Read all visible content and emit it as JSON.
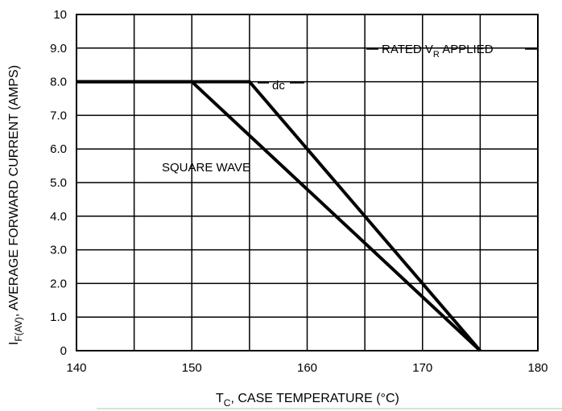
{
  "chart_data": {
    "type": "line",
    "xlabel": {
      "main": "T",
      "sub": "C",
      "rest": ", CASE TEMPERATURE (°C)"
    },
    "ylabel": {
      "main": "I",
      "sub": "F(AV)",
      "rest": ", AVERAGE FORWARD CURRENT (AMPS)"
    },
    "xlim": [
      140,
      180
    ],
    "ylim": [
      0,
      10
    ],
    "x_ticks": [
      140,
      150,
      160,
      170,
      180
    ],
    "y_ticks": [
      {
        "value": 0,
        "label": "0"
      },
      {
        "value": 1,
        "label": "1.0"
      },
      {
        "value": 2,
        "label": "2.0"
      },
      {
        "value": 3,
        "label": "3.0"
      },
      {
        "value": 4,
        "label": "4.0"
      },
      {
        "value": 5,
        "label": "5.0"
      },
      {
        "value": 6,
        "label": "6.0"
      },
      {
        "value": 7,
        "label": "7.0"
      },
      {
        "value": 8,
        "label": "8.0"
      },
      {
        "value": 9,
        "label": "9.0"
      },
      {
        "value": 10,
        "label": "10"
      }
    ],
    "x_grid": [
      140,
      145,
      150,
      155,
      160,
      165,
      170,
      175,
      180
    ],
    "y_grid": [
      1,
      2,
      3,
      4,
      5,
      6,
      7,
      8,
      9
    ],
    "grid": true,
    "series": [
      {
        "name": "dc",
        "x": [
          140,
          155,
          175
        ],
        "y": [
          8,
          8,
          0
        ]
      },
      {
        "name": "SQUARE WAVE",
        "x": [
          140,
          150,
          175
        ],
        "y": [
          8,
          8,
          0
        ]
      }
    ],
    "annotations": {
      "rated": {
        "main": "RATED V",
        "sub": "R",
        "rest": " APPLIED"
      },
      "dc": "dc",
      "square_wave": "SQUARE WAVE"
    }
  }
}
